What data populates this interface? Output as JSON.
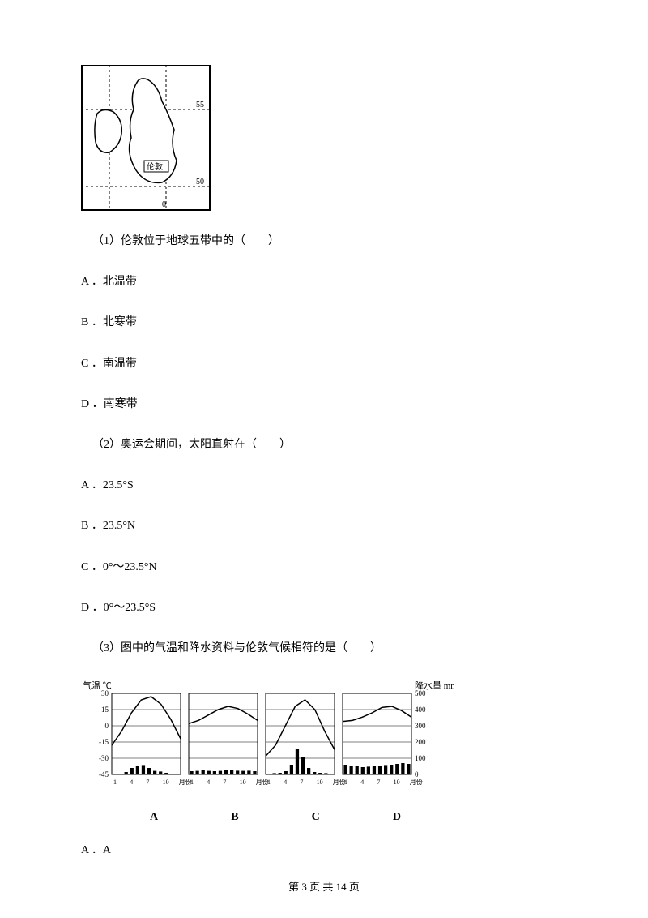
{
  "map": {
    "label_text": "伦敦",
    "lat_marks": [
      "55",
      "50"
    ],
    "lon_mark": "0"
  },
  "q1": {
    "stem": "（1）伦敦位于地球五带中的（　　）",
    "options": {
      "A": "A ．北温带",
      "B": "B ．北寒带",
      "C": "C ．南温带",
      "D": "D ．南寒带"
    }
  },
  "q2": {
    "stem": "（2）奥运会期间，太阳直射在（　　）",
    "options": {
      "A": "A ．23.5°S",
      "B": "B ．23.5°N",
      "C": "C ．0°～23.5°N",
      "D": "D ．0°～23.5°S"
    }
  },
  "q3": {
    "stem": "（3）图中的气温和降水资料与伦敦气候相符的是（　　）",
    "options": {
      "A": "A ．A"
    }
  },
  "climate_chart": {
    "y_axis_left_label": "气温 ℃",
    "y_left_ticks": [
      "30",
      "15",
      "0",
      "-15",
      "-30",
      "-45"
    ],
    "y_axis_right_label": "降水量 mm",
    "y_right_ticks": [
      "500",
      "400",
      "300",
      "200",
      "100",
      "0"
    ],
    "x_ticks": [
      "1",
      "4",
      "7",
      "10",
      "月份"
    ],
    "subplot_labels": [
      "A",
      "B",
      "C",
      "D"
    ],
    "subplots": [
      {
        "temp_curve": [
          -18,
          -5,
          12,
          24,
          27,
          20,
          6,
          -12
        ],
        "precip_bars": [
          3,
          5,
          15,
          40,
          55,
          58,
          40,
          22,
          18,
          10,
          5,
          3
        ]
      },
      {
        "temp_curve": [
          2,
          5,
          10,
          15,
          18,
          16,
          11,
          5
        ],
        "precip_bars": [
          20,
          22,
          25,
          22,
          20,
          22,
          25,
          25,
          23,
          22,
          23,
          20
        ]
      },
      {
        "temp_curve": [
          -28,
          -18,
          0,
          18,
          24,
          15,
          -5,
          -22
        ],
        "precip_bars": [
          5,
          8,
          10,
          20,
          60,
          160,
          110,
          40,
          15,
          10,
          8,
          5
        ]
      },
      {
        "temp_curve": [
          4,
          5,
          8,
          12,
          17,
          18,
          14,
          8
        ],
        "precip_bars": [
          60,
          50,
          50,
          45,
          48,
          50,
          55,
          58,
          60,
          65,
          70,
          65
        ]
      }
    ],
    "colors": {
      "background": "#ffffff",
      "axis": "#000000",
      "bar": "#000000",
      "line": "#000000"
    },
    "styling": {
      "label_fontsize": 11,
      "tick_fontsize": 9,
      "bar_width": 0.6
    }
  },
  "footer": "第 3 页 共 14 页"
}
